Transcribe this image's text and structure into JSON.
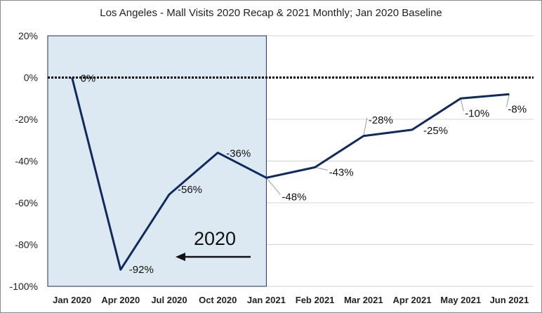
{
  "chart_data": {
    "type": "line",
    "title": "Los Angeles - Mall Visits 2020 Recap & 2021 Monthly; Jan 2020 Baseline",
    "xlabel": "",
    "ylabel": "",
    "categories": [
      "Jan 2020",
      "Apr 2020",
      "Jul 2020",
      "Oct 2020",
      "Jan 2021",
      "Feb 2021",
      "Mar 2021",
      "Apr 2021",
      "May 2021",
      "Jun 2021"
    ],
    "values": [
      0,
      -92,
      -56,
      -36,
      -48,
      -43,
      -28,
      -25,
      -10,
      -8
    ],
    "data_labels": [
      "0%",
      "-92%",
      "-56%",
      "-36%",
      "-48%",
      "-43%",
      "-28%",
      "-25%",
      "-10%",
      "-8%"
    ],
    "yticks": [
      "20%",
      "0%",
      "-20%",
      "-40%",
      "-60%",
      "-80%",
      "-100%"
    ],
    "ylim": [
      -100,
      20
    ],
    "baseline": 0,
    "grid": true,
    "highlight_range": [
      "Jan 2020",
      "Jan 2021"
    ],
    "annotation": "2020",
    "colors": {
      "line": "#0f2a5e",
      "highlight_fill": "#dde9f2",
      "highlight_border": "#1b2f5a",
      "grid": "#d4d4d4",
      "baseline": "#000000"
    }
  }
}
